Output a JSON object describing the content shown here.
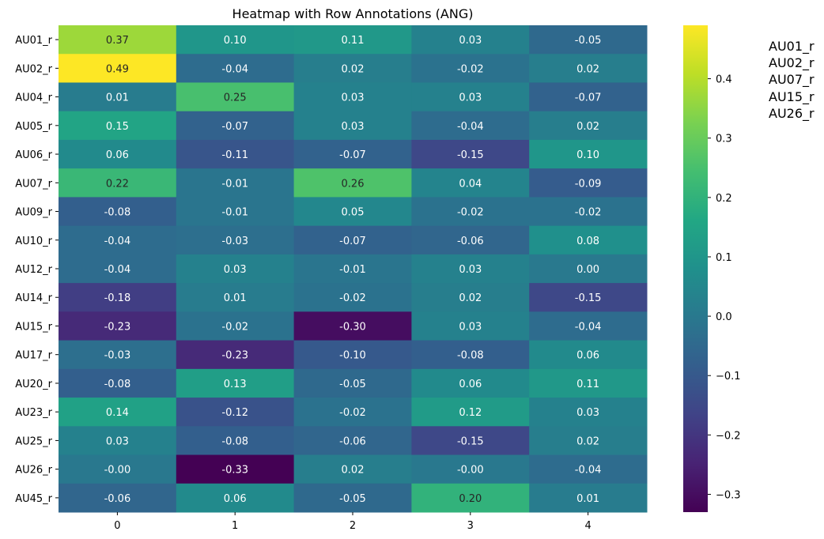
{
  "chart_data": {
    "type": "heatmap",
    "title": "Heatmap with Row Annotations (ANG)",
    "xlabel": "",
    "ylabel": "",
    "columns": [
      "0",
      "1",
      "2",
      "3",
      "4"
    ],
    "rows": [
      "AU01_r",
      "AU02_r",
      "AU04_r",
      "AU05_r",
      "AU06_r",
      "AU07_r",
      "AU09_r",
      "AU10_r",
      "AU12_r",
      "AU14_r",
      "AU15_r",
      "AU17_r",
      "AU20_r",
      "AU23_r",
      "AU25_r",
      "AU26_r",
      "AU45_r"
    ],
    "values": [
      [
        0.37,
        0.1,
        0.11,
        0.03,
        -0.05
      ],
      [
        0.49,
        -0.04,
        0.02,
        -0.02,
        0.02
      ],
      [
        0.01,
        0.25,
        0.03,
        0.03,
        -0.07
      ],
      [
        0.15,
        -0.07,
        0.03,
        -0.04,
        0.02
      ],
      [
        0.06,
        -0.11,
        -0.07,
        -0.15,
        0.1
      ],
      [
        0.22,
        -0.01,
        0.26,
        0.04,
        -0.09
      ],
      [
        -0.08,
        -0.01,
        0.05,
        -0.02,
        -0.02
      ],
      [
        -0.04,
        -0.03,
        -0.07,
        -0.06,
        0.08
      ],
      [
        -0.04,
        0.03,
        -0.01,
        0.03,
        0.0
      ],
      [
        -0.18,
        0.01,
        -0.02,
        0.02,
        -0.15
      ],
      [
        -0.23,
        -0.02,
        -0.3,
        0.03,
        -0.04
      ],
      [
        -0.03,
        -0.23,
        -0.1,
        -0.08,
        0.06
      ],
      [
        -0.08,
        0.13,
        -0.05,
        0.06,
        0.11
      ],
      [
        0.14,
        -0.12,
        -0.02,
        0.12,
        0.03
      ],
      [
        0.03,
        -0.08,
        -0.06,
        -0.15,
        0.02
      ],
      [
        -0.001,
        -0.33,
        0.02,
        -0.001,
        -0.04
      ],
      [
        -0.06,
        0.06,
        -0.05,
        0.2,
        0.01
      ]
    ],
    "colormap": "viridis",
    "vmin": -0.33,
    "vmax": 0.49,
    "colorbar_ticks": [
      0.4,
      0.3,
      0.2,
      0.1,
      0.0,
      -0.1,
      -0.2,
      -0.3
    ],
    "colorbar_tick_labels": [
      "0.4",
      "0.3",
      "0.2",
      "0.1",
      "0.0",
      "−0.1",
      "−0.2",
      "−0.3"
    ],
    "annotation_format": "2 decimals",
    "row_annotations": [
      "AU01_r",
      "AU02_r",
      "AU07_r",
      "AU15_r",
      "AU26_r"
    ]
  }
}
